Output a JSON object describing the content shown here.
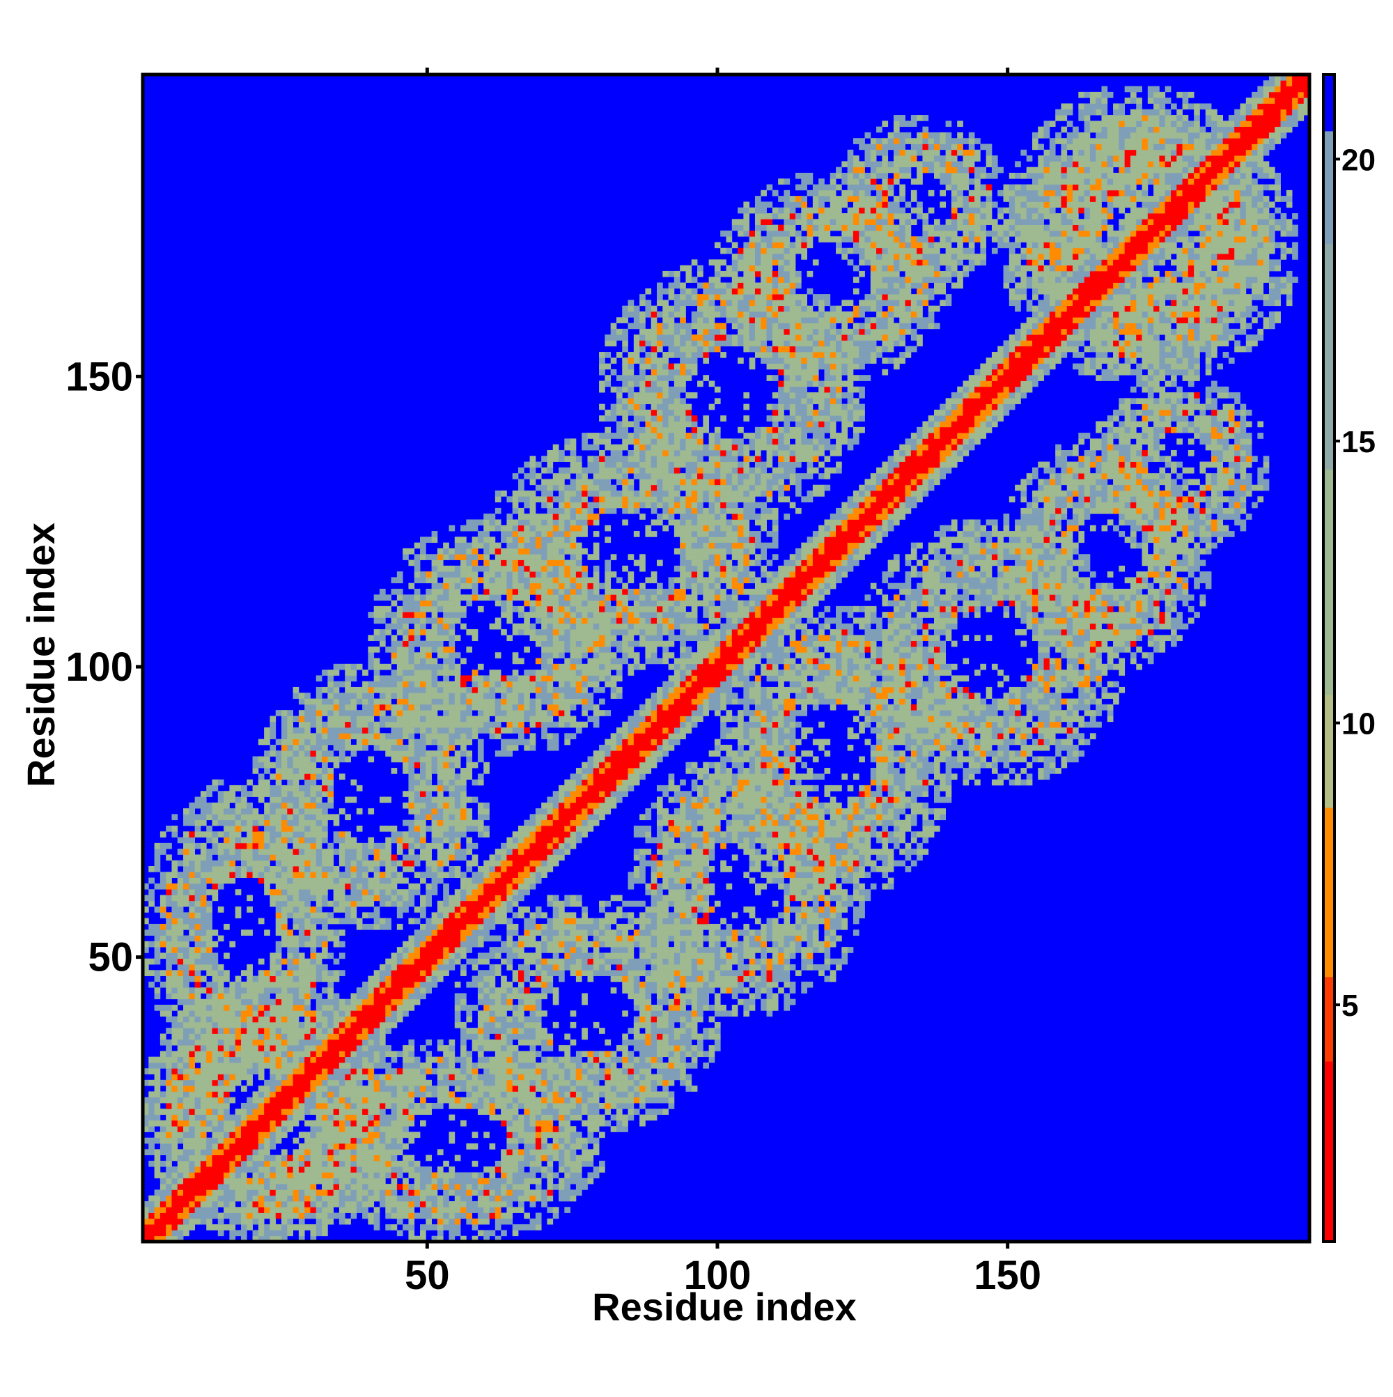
{
  "chart_data": {
    "type": "heatmap",
    "title": "",
    "xlabel": "Residue index",
    "ylabel": "Residue index",
    "n_residues": 202,
    "xlim": [
      1,
      202
    ],
    "ylim": [
      1,
      202
    ],
    "x_ticks": [
      50,
      100,
      150
    ],
    "y_ticks": [
      50,
      100,
      150
    ],
    "colorbar": {
      "ticks": [
        5,
        10,
        15,
        20
      ],
      "range": [
        0.8,
        21.5
      ],
      "colors": {
        "very_close": "#ff0000",
        "close": "#ff8c00",
        "medium": "#9fb990",
        "far_contact": "#7f9fb8",
        "no_contact": "#0000ff"
      }
    },
    "contact_map_description": {
      "matrix": "symmetric residue-residue distance map",
      "background_value": 21.5,
      "diagonal_band_width": 6,
      "contact_blocks": [
        {
          "residues_a": [
            1,
            45
          ],
          "residues_b": [
            1,
            45
          ],
          "level": "medium"
        },
        {
          "residues_a": [
            1,
            35
          ],
          "residues_b": [
            30,
            80
          ],
          "level": "medium"
        },
        {
          "residues_a": [
            20,
            60
          ],
          "residues_b": [
            55,
            100
          ],
          "level": "medium"
        },
        {
          "residues_a": [
            40,
            85
          ],
          "residues_b": [
            85,
            125
          ],
          "level": "medium"
        },
        {
          "residues_a": [
            60,
            110
          ],
          "residues_b": [
            100,
            140
          ],
          "level": "medium"
        },
        {
          "residues_a": [
            80,
            125
          ],
          "residues_b": [
            125,
            170
          ],
          "level": "medium"
        },
        {
          "residues_a": [
            100,
            140
          ],
          "residues_b": [
            150,
            185
          ],
          "level": "medium"
        },
        {
          "residues_a": [
            120,
            150
          ],
          "residues_b": [
            165,
            195
          ],
          "level": "medium"
        },
        {
          "residues_a": [
            150,
            195
          ],
          "residues_b": [
            150,
            200
          ],
          "level": "medium"
        }
      ]
    }
  }
}
